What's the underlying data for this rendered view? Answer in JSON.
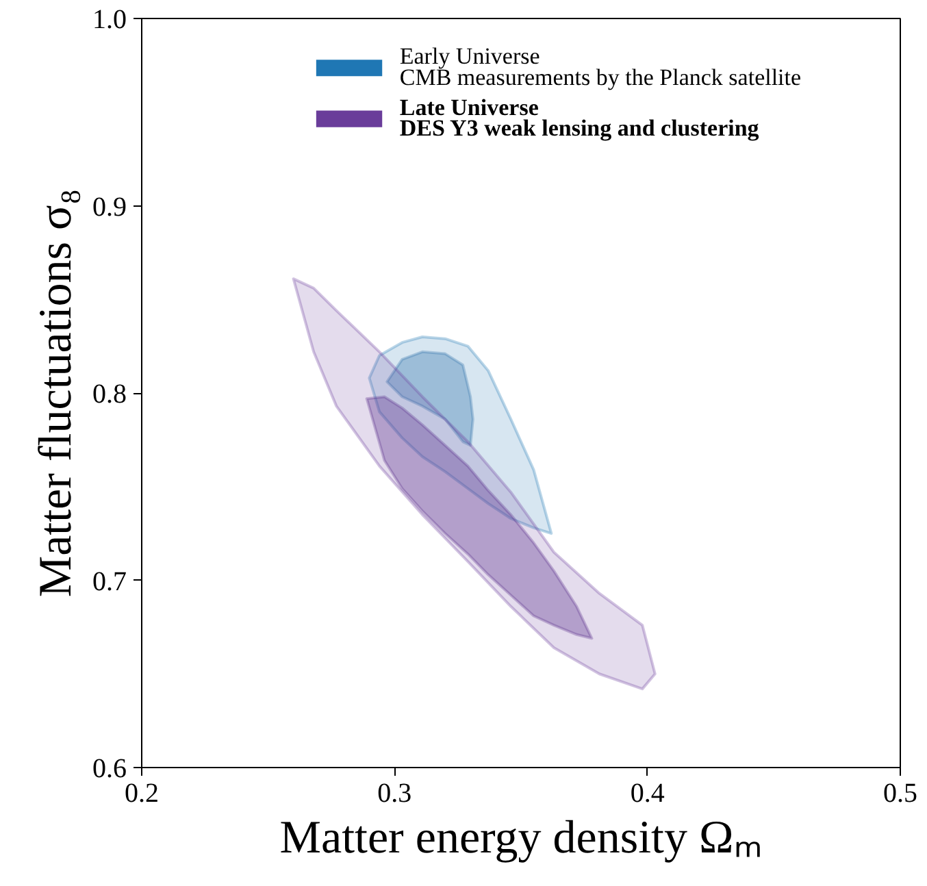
{
  "chart_data": {
    "type": "area",
    "xlabel": "Matter energy density Ωₘ",
    "ylabel": "Matter fluctuations σ₈",
    "xlim": [
      0.2,
      0.5
    ],
    "ylim": [
      0.6,
      1.0
    ],
    "xticks": [
      0.2,
      0.3,
      0.4,
      0.5
    ],
    "yticks": [
      0.6,
      0.7,
      0.8,
      0.9,
      {
        "value": 1.0,
        "label": "1.0"
      }
    ],
    "grid": false,
    "legend": "top",
    "series": [
      {
        "name": "Early Universe\nCMB measurements by the Planck satellite",
        "color": "#1f77b4",
        "x": [
          0.29,
          0.294,
          0.303,
          0.311,
          0.32,
          0.329,
          0.337,
          0.346,
          0.355,
          0.362,
          0.355,
          0.346,
          0.337,
          0.329,
          0.32,
          0.311,
          0.303,
          0.294
        ],
        "values": [
          0.808,
          0.82,
          0.827,
          0.83,
          0.829,
          0.825,
          0.812,
          0.786,
          0.759,
          0.725,
          0.728,
          0.733,
          0.741,
          0.749,
          0.758,
          0.766,
          0.776,
          0.79
        ]
      },
      {
        "color": "#2f6fa8",
        "x": [
          0.297,
          0.303,
          0.311,
          0.32,
          0.327,
          0.33,
          0.331,
          0.33,
          0.327,
          0.32,
          0.311,
          0.303
        ],
        "values": [
          0.806,
          0.818,
          0.822,
          0.821,
          0.815,
          0.798,
          0.786,
          0.772,
          0.774,
          0.786,
          0.793,
          0.798
        ]
      },
      {
        "name": "Late Universe\nDES Y3 weak lensing and clustering",
        "color": "#6a3d9a",
        "x": [
          0.26,
          0.268,
          0.277,
          0.294,
          0.311,
          0.329,
          0.346,
          0.363,
          0.381,
          0.398,
          0.403,
          0.398,
          0.381,
          0.363,
          0.346,
          0.329,
          0.311,
          0.294,
          0.277,
          0.268
        ],
        "values": [
          0.861,
          0.856,
          0.844,
          0.822,
          0.798,
          0.774,
          0.747,
          0.715,
          0.693,
          0.676,
          0.65,
          0.642,
          0.65,
          0.664,
          0.686,
          0.71,
          0.735,
          0.761,
          0.793,
          0.822
        ]
      },
      {
        "color": "#5a2f8c",
        "x": [
          0.289,
          0.296,
          0.303,
          0.311,
          0.32,
          0.329,
          0.337,
          0.346,
          0.355,
          0.363,
          0.372,
          0.378,
          0.372,
          0.363,
          0.355,
          0.346,
          0.337,
          0.329,
          0.32,
          0.311,
          0.303,
          0.296
        ],
        "values": [
          0.797,
          0.798,
          0.792,
          0.783,
          0.772,
          0.761,
          0.748,
          0.735,
          0.72,
          0.705,
          0.686,
          0.669,
          0.671,
          0.676,
          0.681,
          0.692,
          0.703,
          0.714,
          0.725,
          0.737,
          0.749,
          0.764
        ]
      }
    ]
  }
}
